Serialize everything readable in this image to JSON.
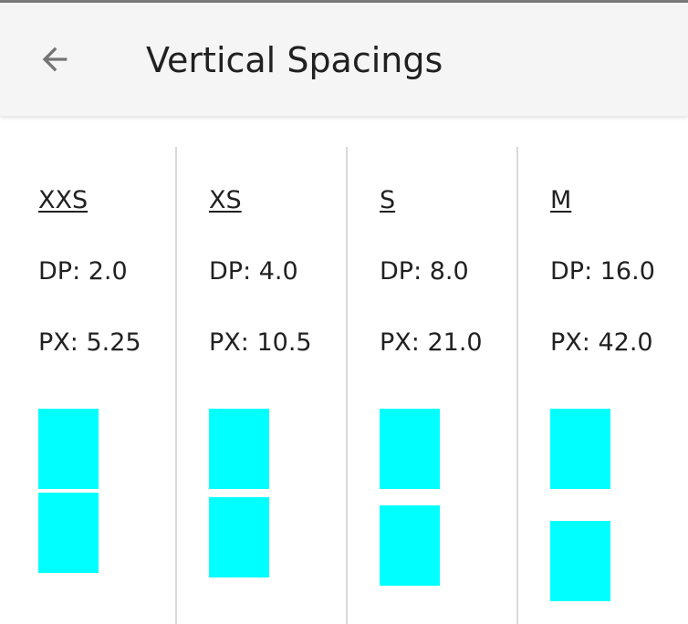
{
  "app_bar": {
    "title": "Vertical Spacings",
    "back_icon": "arrow-back-icon"
  },
  "spacings": [
    {
      "label": "XXS",
      "dp": "DP: 2.0",
      "px": "PX: 5.25",
      "dp_value": 2.0
    },
    {
      "label": "XS",
      "dp": "DP: 4.0",
      "px": "PX: 10.5",
      "dp_value": 4.0
    },
    {
      "label": "S",
      "dp": "DP: 8.0",
      "px": "PX: 21.0",
      "dp_value": 8.0
    },
    {
      "label": "M",
      "dp": "DP: 16.0",
      "px": "PX: 42.0",
      "dp_value": 16.0
    }
  ],
  "colors": {
    "swatch": "#00ffff",
    "app_bar_bg": "#f5f5f5",
    "divider": "#d9d9d9"
  }
}
